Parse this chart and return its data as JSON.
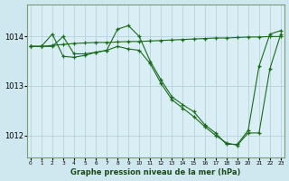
{
  "title": "Graphe pression niveau de la mer (hPa)",
  "background_color": "#cfe8f0",
  "plot_bg_color": "#daeef5",
  "grid_color": "#b0ccd6",
  "line_color": "#1a6b1a",
  "marker_color": "#1a6b1a",
  "xlim": [
    -0.3,
    23.3
  ],
  "ylim": [
    1011.55,
    1014.65
  ],
  "yticks": [
    1012,
    1013,
    1014
  ],
  "xticks": [
    0,
    1,
    2,
    3,
    4,
    5,
    6,
    7,
    8,
    9,
    10,
    11,
    12,
    13,
    14,
    15,
    16,
    17,
    18,
    19,
    20,
    21,
    22,
    23
  ],
  "series": [
    {
      "x": [
        0,
        1,
        2,
        3,
        4,
        5,
        6,
        7,
        8,
        9,
        10,
        11,
        12,
        13,
        14,
        15,
        16,
        17,
        18,
        19,
        20,
        21,
        22,
        23
      ],
      "y": [
        1013.8,
        1013.8,
        1013.82,
        1013.84,
        1013.86,
        1013.87,
        1013.88,
        1013.88,
        1013.89,
        1013.9,
        1013.9,
        1013.91,
        1013.92,
        1013.93,
        1013.94,
        1013.95,
        1013.96,
        1013.97,
        1013.97,
        1013.98,
        1013.99,
        1013.99,
        1014.0,
        1014.0
      ]
    },
    {
      "x": [
        0,
        1,
        2,
        3,
        4,
        5,
        6,
        7,
        8,
        9,
        10,
        11,
        12,
        13,
        14,
        15,
        16,
        17,
        18,
        19,
        20,
        21,
        22,
        23
      ],
      "y": [
        1013.8,
        1013.8,
        1014.05,
        1013.6,
        1013.58,
        1013.62,
        1013.68,
        1013.72,
        1014.15,
        1014.22,
        1014.0,
        1013.5,
        1013.12,
        1012.78,
        1012.62,
        1012.48,
        1012.22,
        1012.05,
        1011.82,
        1011.82,
        1012.1,
        1013.4,
        1014.05,
        1014.12
      ]
    },
    {
      "x": [
        0,
        1,
        2,
        3,
        4,
        5,
        6,
        7,
        8,
        9,
        10,
        11,
        12,
        13,
        14,
        15,
        16,
        17,
        18,
        19,
        20,
        21,
        22,
        23
      ],
      "y": [
        1013.8,
        1013.8,
        1013.8,
        1014.0,
        1013.65,
        1013.65,
        1013.68,
        1013.72,
        1013.8,
        1013.75,
        1013.72,
        1013.45,
        1013.05,
        1012.72,
        1012.55,
        1012.38,
        1012.18,
        1012.0,
        1011.85,
        1011.8,
        1012.05,
        1012.05,
        1013.35,
        1014.05
      ]
    }
  ]
}
